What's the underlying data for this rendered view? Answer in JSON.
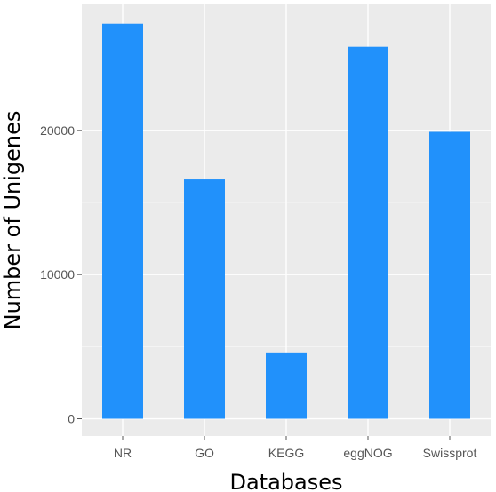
{
  "chart_data": {
    "type": "bar",
    "title": "",
    "xlabel": "Databases",
    "ylabel": "Number of Unigenes",
    "categories": [
      "NR",
      "GO",
      "KEGG",
      "eggNOG",
      "Swissprot"
    ],
    "values": [
      27400,
      16600,
      4600,
      25800,
      19900
    ],
    "ylim": [
      -1200,
      28800
    ],
    "yticks": [
      0,
      10000,
      20000
    ],
    "ytick_labels": [
      "0",
      "10000",
      "20000"
    ],
    "grid": true,
    "bar_color": "#2191fb",
    "panel_color": "#ebebeb",
    "grid_color": "#ffffff"
  }
}
